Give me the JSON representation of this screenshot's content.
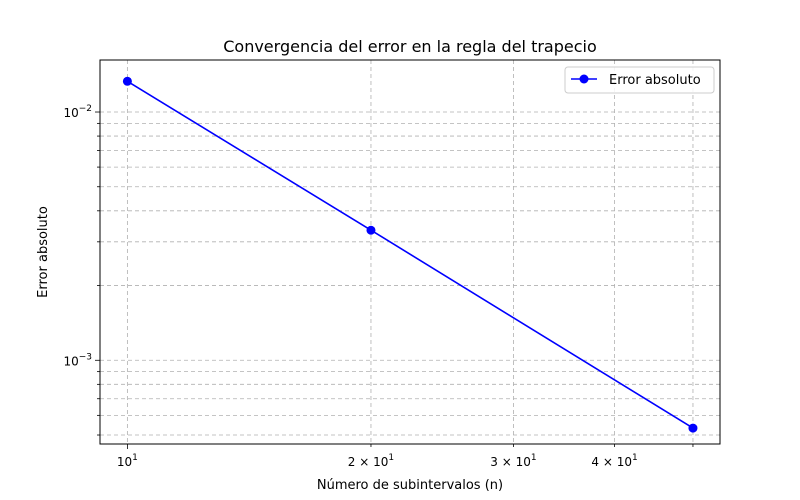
{
  "chart_data": {
    "type": "line",
    "title": "Convergencia del error en la regla del trapecio",
    "xlabel": "Número de subintervalos (n)",
    "ylabel": "Error absoluto",
    "xscale": "log",
    "yscale": "log",
    "xlim": [
      9.25,
      54
    ],
    "ylim": [
      0.00046,
      0.0162
    ],
    "grid": true,
    "grid_style": "dashed",
    "legend_position": "top-right",
    "x_ticks": [
      {
        "value": 10,
        "base": "10",
        "exp": "1",
        "prefix": ""
      },
      {
        "value": 20,
        "base": "10",
        "exp": "1",
        "prefix": "2 × "
      },
      {
        "value": 30,
        "base": "10",
        "exp": "1",
        "prefix": "3 × "
      },
      {
        "value": 40,
        "base": "10",
        "exp": "1",
        "prefix": "4 × "
      }
    ],
    "y_ticks": [
      {
        "value": 0.01,
        "base": "10",
        "exp": "−2"
      },
      {
        "value": 0.001,
        "base": "10",
        "exp": "−3"
      }
    ],
    "series": [
      {
        "name": "Error absoluto",
        "color": "#0000ff",
        "marker": "circle",
        "x": [
          10,
          20,
          50
        ],
        "y": [
          0.0133,
          0.00334,
          0.000533
        ]
      }
    ]
  }
}
